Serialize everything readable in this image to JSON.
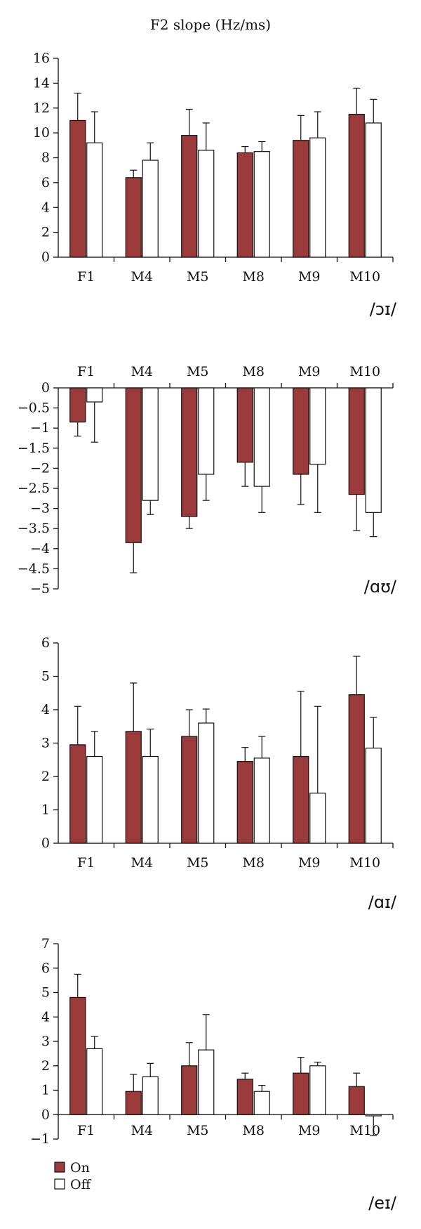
{
  "title": "F2 slope (Hz/ms)",
  "colors": {
    "on": "#9b3a3a",
    "off": "#ffffff",
    "stroke": "#111111"
  },
  "legend": [
    {
      "name": "On",
      "color": "#9b3a3a"
    },
    {
      "name": "Off",
      "color": "#ffffff"
    }
  ],
  "chart_data": [
    {
      "type": "bar",
      "label": "/ɔɪ/",
      "categories": [
        "F1",
        "M4",
        "M5",
        "M8",
        "M9",
        "M10"
      ],
      "series": [
        {
          "name": "On",
          "values": [
            11.0,
            6.4,
            9.8,
            8.4,
            9.4,
            11.5
          ],
          "errors": [
            2.2,
            0.6,
            2.1,
            0.5,
            2.0,
            2.1
          ]
        },
        {
          "name": "Off",
          "values": [
            9.2,
            7.8,
            8.6,
            8.5,
            9.6,
            10.8
          ],
          "errors": [
            2.5,
            1.4,
            2.2,
            0.8,
            2.1,
            1.9
          ]
        }
      ],
      "ylim": [
        0,
        16
      ],
      "yticks": [
        "0",
        "2",
        "4",
        "6",
        "8",
        "10",
        "12",
        "14",
        "16"
      ],
      "ytick_values": [
        0,
        2,
        4,
        6,
        8,
        10,
        12,
        14,
        16
      ],
      "category_axis": "bottom",
      "legend": false
    },
    {
      "type": "bar",
      "label": "/ɑʊ/",
      "categories": [
        "F1",
        "M4",
        "M5",
        "M8",
        "M9",
        "M10"
      ],
      "series": [
        {
          "name": "On",
          "values": [
            -0.85,
            -3.85,
            -3.2,
            -1.85,
            -2.15,
            -2.65
          ],
          "errors": [
            0.35,
            0.75,
            0.3,
            0.6,
            0.75,
            0.9
          ]
        },
        {
          "name": "Off",
          "values": [
            -0.35,
            -2.8,
            -2.15,
            -2.45,
            -1.9,
            -3.1
          ],
          "errors": [
            1.0,
            0.35,
            0.65,
            0.65,
            1.2,
            0.6
          ]
        }
      ],
      "ylim": [
        -5,
        0
      ],
      "yticks": [
        "0",
        "−0.5",
        "−1",
        "−1.5",
        "−2",
        "−2.5",
        "−3",
        "−3.5",
        "−4",
        "−4.5",
        "−5"
      ],
      "ytick_values": [
        0,
        -0.5,
        -1,
        -1.5,
        -2,
        -2.5,
        -3,
        -3.5,
        -4,
        -4.5,
        -5
      ],
      "category_axis": "top",
      "legend": false
    },
    {
      "type": "bar",
      "label": "/ɑɪ/",
      "categories": [
        "F1",
        "M4",
        "M5",
        "M8",
        "M9",
        "M10"
      ],
      "series": [
        {
          "name": "On",
          "values": [
            2.95,
            3.35,
            3.2,
            2.45,
            2.6,
            4.45
          ],
          "errors": [
            1.15,
            1.45,
            0.8,
            0.42,
            1.95,
            1.15
          ]
        },
        {
          "name": "Off",
          "values": [
            2.6,
            2.6,
            3.6,
            2.55,
            1.5,
            2.85
          ],
          "errors": [
            0.75,
            0.82,
            0.42,
            0.65,
            2.6,
            0.92
          ]
        }
      ],
      "ylim": [
        0,
        6
      ],
      "yticks": [
        "0",
        "1",
        "2",
        "3",
        "4",
        "5",
        "6"
      ],
      "ytick_values": [
        0,
        1,
        2,
        3,
        4,
        5,
        6
      ],
      "category_axis": "bottom",
      "legend": false
    },
    {
      "type": "bar",
      "label": "/eɪ/",
      "categories": [
        "F1",
        "M4",
        "M5",
        "M8",
        "M9",
        "M10"
      ],
      "series": [
        {
          "name": "On",
          "values": [
            4.8,
            0.95,
            2.0,
            1.45,
            1.7,
            1.15
          ],
          "errors": [
            0.95,
            0.7,
            0.95,
            0.25,
            0.65,
            0.55
          ]
        },
        {
          "name": "Off",
          "values": [
            2.7,
            1.55,
            2.65,
            0.95,
            2.0,
            -0.05
          ],
          "errors": [
            0.5,
            0.55,
            1.45,
            0.25,
            0.15,
            0.8
          ]
        }
      ],
      "ylim": [
        -1,
        7
      ],
      "yticks": [
        "−1",
        "0",
        "1",
        "2",
        "3",
        "4",
        "5",
        "6",
        "7"
      ],
      "ytick_values": [
        -1,
        0,
        1,
        2,
        3,
        4,
        5,
        6,
        7
      ],
      "category_axis": "bottom",
      "legend": true
    }
  ]
}
